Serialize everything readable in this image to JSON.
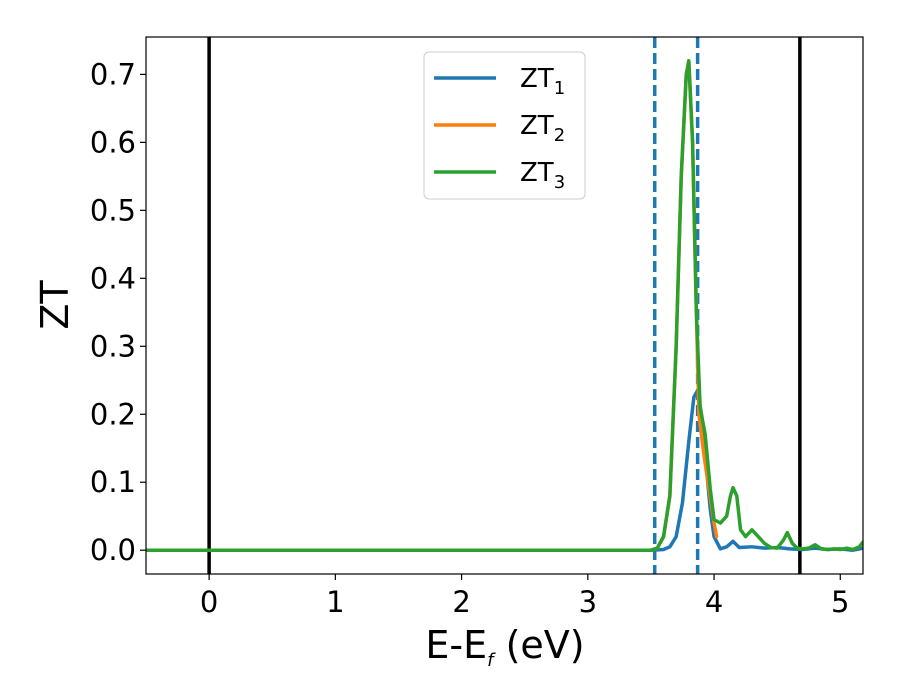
{
  "chart_data": {
    "type": "line",
    "title": "",
    "xlabel": "E-E",
    "xlabel_sub": "f",
    "xlabel_unit": " (eV)",
    "ylabel": "ZT",
    "xlim": [
      -0.5,
      5.18
    ],
    "ylim": [
      -0.035,
      0.755
    ],
    "xticks": [
      0,
      1,
      2,
      3,
      4,
      5
    ],
    "xtick_labels": [
      "0",
      "1",
      "2",
      "3",
      "4",
      "5"
    ],
    "yticks": [
      0.0,
      0.1,
      0.2,
      0.3,
      0.4,
      0.5,
      0.6,
      0.7
    ],
    "ytick_labels": [
      "0.0",
      "0.1",
      "0.2",
      "0.3",
      "0.4",
      "0.5",
      "0.6",
      "0.7"
    ],
    "grid": false,
    "legend_position": "top-center",
    "vlines": [
      {
        "x": 0.0,
        "style": "solid",
        "color": "#000000"
      },
      {
        "x": 4.68,
        "style": "solid",
        "color": "#000000"
      },
      {
        "x": 3.53,
        "style": "dashed",
        "color": "#1f77b4"
      },
      {
        "x": 3.87,
        "style": "dashed",
        "color": "#1f77b4"
      }
    ],
    "series": [
      {
        "name": "ZT",
        "name_sub": "1",
        "color": "#1f77b4",
        "x": [
          -0.5,
          3.5,
          3.6,
          3.65,
          3.7,
          3.75,
          3.8,
          3.84,
          3.87,
          3.9,
          3.94,
          3.97,
          4.0,
          4.05,
          4.1,
          4.15,
          4.2,
          4.3,
          4.4,
          4.5,
          4.6,
          4.7,
          4.8,
          4.9,
          5.0,
          5.1,
          5.18
        ],
        "y": [
          0.0,
          0.0,
          0.001,
          0.005,
          0.02,
          0.07,
          0.16,
          0.225,
          0.235,
          0.2,
          0.12,
          0.06,
          0.02,
          0.002,
          0.005,
          0.013,
          0.004,
          0.005,
          0.003,
          0.004,
          0.002,
          0.001,
          0.003,
          0.001,
          0.002,
          0.0,
          0.003
        ]
      },
      {
        "name": "ZT",
        "name_sub": "2",
        "color": "#ff7f0e",
        "x": [
          -0.5,
          3.5,
          3.55,
          3.6,
          3.65,
          3.7,
          3.74,
          3.78,
          3.8,
          3.83,
          3.86,
          3.88,
          3.92,
          3.96,
          4.0,
          4.02
        ],
        "y": [
          0.0,
          0.0,
          0.003,
          0.02,
          0.08,
          0.3,
          0.55,
          0.7,
          0.72,
          0.6,
          0.35,
          0.2,
          0.14,
          0.09,
          0.04,
          0.02
        ]
      },
      {
        "name": "ZT",
        "name_sub": "3",
        "color": "#2ca02c",
        "x": [
          -0.5,
          3.5,
          3.55,
          3.6,
          3.65,
          3.7,
          3.74,
          3.78,
          3.8,
          3.83,
          3.86,
          3.89,
          3.93,
          3.97,
          4.0,
          4.05,
          4.1,
          4.13,
          4.15,
          4.18,
          4.21,
          4.25,
          4.3,
          4.35,
          4.4,
          4.45,
          4.5,
          4.55,
          4.58,
          4.62,
          4.66,
          4.7,
          4.75,
          4.8,
          4.85,
          4.9,
          4.95,
          5.0,
          5.05,
          5.1,
          5.15,
          5.18
        ],
        "y": [
          0.0,
          0.0,
          0.003,
          0.02,
          0.08,
          0.3,
          0.55,
          0.7,
          0.72,
          0.6,
          0.35,
          0.21,
          0.17,
          0.09,
          0.045,
          0.04,
          0.05,
          0.08,
          0.092,
          0.08,
          0.03,
          0.02,
          0.03,
          0.02,
          0.01,
          0.004,
          0.003,
          0.015,
          0.026,
          0.01,
          0.003,
          0.002,
          0.003,
          0.008,
          0.002,
          0.001,
          0.002,
          0.001,
          0.003,
          0.001,
          0.005,
          0.012
        ]
      }
    ]
  }
}
